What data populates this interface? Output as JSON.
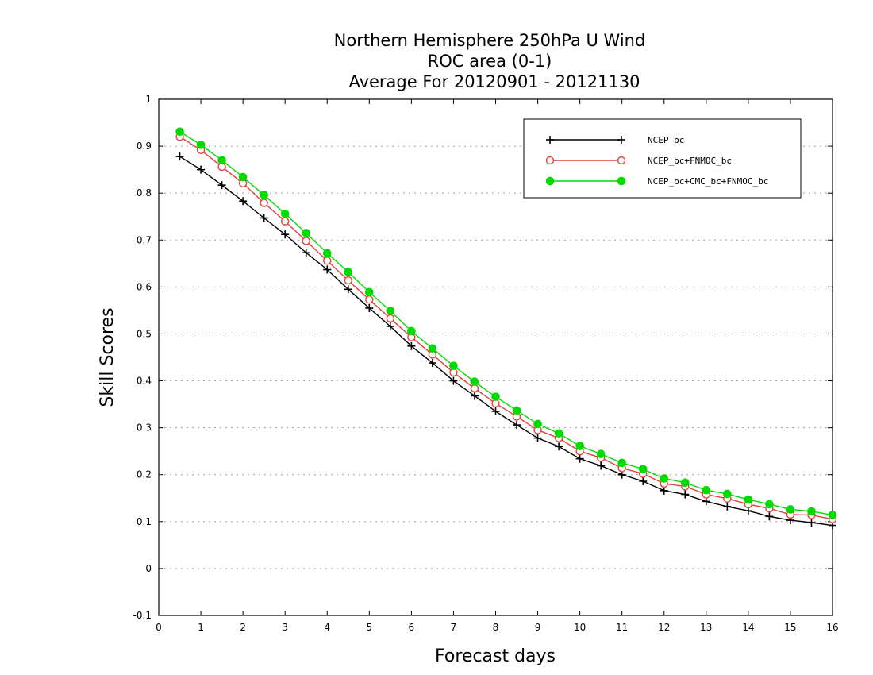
{
  "chart_data": {
    "type": "line",
    "title": [
      "Northern Hemisphere 250hPa U Wind",
      "ROC area (0-1)",
      "Average For 20120901 - 20121130"
    ],
    "xlabel": "Forecast days",
    "ylabel": "Skill Scores",
    "xlim": [
      0,
      16
    ],
    "ylim": [
      -0.1,
      1
    ],
    "xticks": [
      "0",
      "1",
      "2",
      "3",
      "4",
      "5",
      "6",
      "7",
      "8",
      "9",
      "10",
      "11",
      "12",
      "13",
      "14",
      "15",
      "16"
    ],
    "yticks": [
      "-0.1",
      "0",
      "0.1",
      "0.2",
      "0.3",
      "0.4",
      "0.5",
      "0.6",
      "0.7",
      "0.8",
      "0.9",
      "1"
    ],
    "grid": true,
    "legend_position": "top-right",
    "x": [
      0.5,
      1,
      1.5,
      2,
      2.5,
      3,
      3.5,
      4,
      4.5,
      5,
      5.5,
      6,
      6.5,
      7,
      7.5,
      8,
      8.5,
      9,
      9.5,
      10,
      10.5,
      11,
      11.5,
      12,
      12.5,
      13,
      13.5,
      14,
      14.5,
      15,
      15.5,
      16
    ],
    "series": [
      {
        "name": "NCEP_bc",
        "color": "#000000",
        "marker": "plus",
        "values": [
          0.878,
          0.85,
          0.817,
          0.783,
          0.747,
          0.712,
          0.673,
          0.637,
          0.595,
          0.555,
          0.516,
          0.474,
          0.438,
          0.4,
          0.368,
          0.335,
          0.306,
          0.278,
          0.26,
          0.234,
          0.219,
          0.2,
          0.186,
          0.166,
          0.158,
          0.143,
          0.132,
          0.123,
          0.111,
          0.103,
          0.098,
          0.092
        ]
      },
      {
        "name": "NCEP_bc+FNMOC_bc",
        "color": "#e8403c",
        "marker": "open-circle",
        "values": [
          0.92,
          0.892,
          0.856,
          0.821,
          0.779,
          0.74,
          0.698,
          0.656,
          0.614,
          0.573,
          0.533,
          0.493,
          0.456,
          0.418,
          0.384,
          0.352,
          0.324,
          0.295,
          0.278,
          0.25,
          0.236,
          0.214,
          0.202,
          0.181,
          0.175,
          0.158,
          0.149,
          0.137,
          0.128,
          0.115,
          0.114,
          0.105
        ]
      },
      {
        "name": "NCEP_bc+CMC_bc+FNMOC_bc",
        "color": "#00dc00",
        "marker": "filled-circle",
        "values": [
          0.931,
          0.903,
          0.87,
          0.834,
          0.796,
          0.756,
          0.715,
          0.672,
          0.632,
          0.589,
          0.549,
          0.506,
          0.469,
          0.432,
          0.398,
          0.366,
          0.337,
          0.308,
          0.288,
          0.261,
          0.244,
          0.225,
          0.212,
          0.192,
          0.183,
          0.167,
          0.159,
          0.147,
          0.137,
          0.126,
          0.122,
          0.114
        ]
      }
    ]
  }
}
